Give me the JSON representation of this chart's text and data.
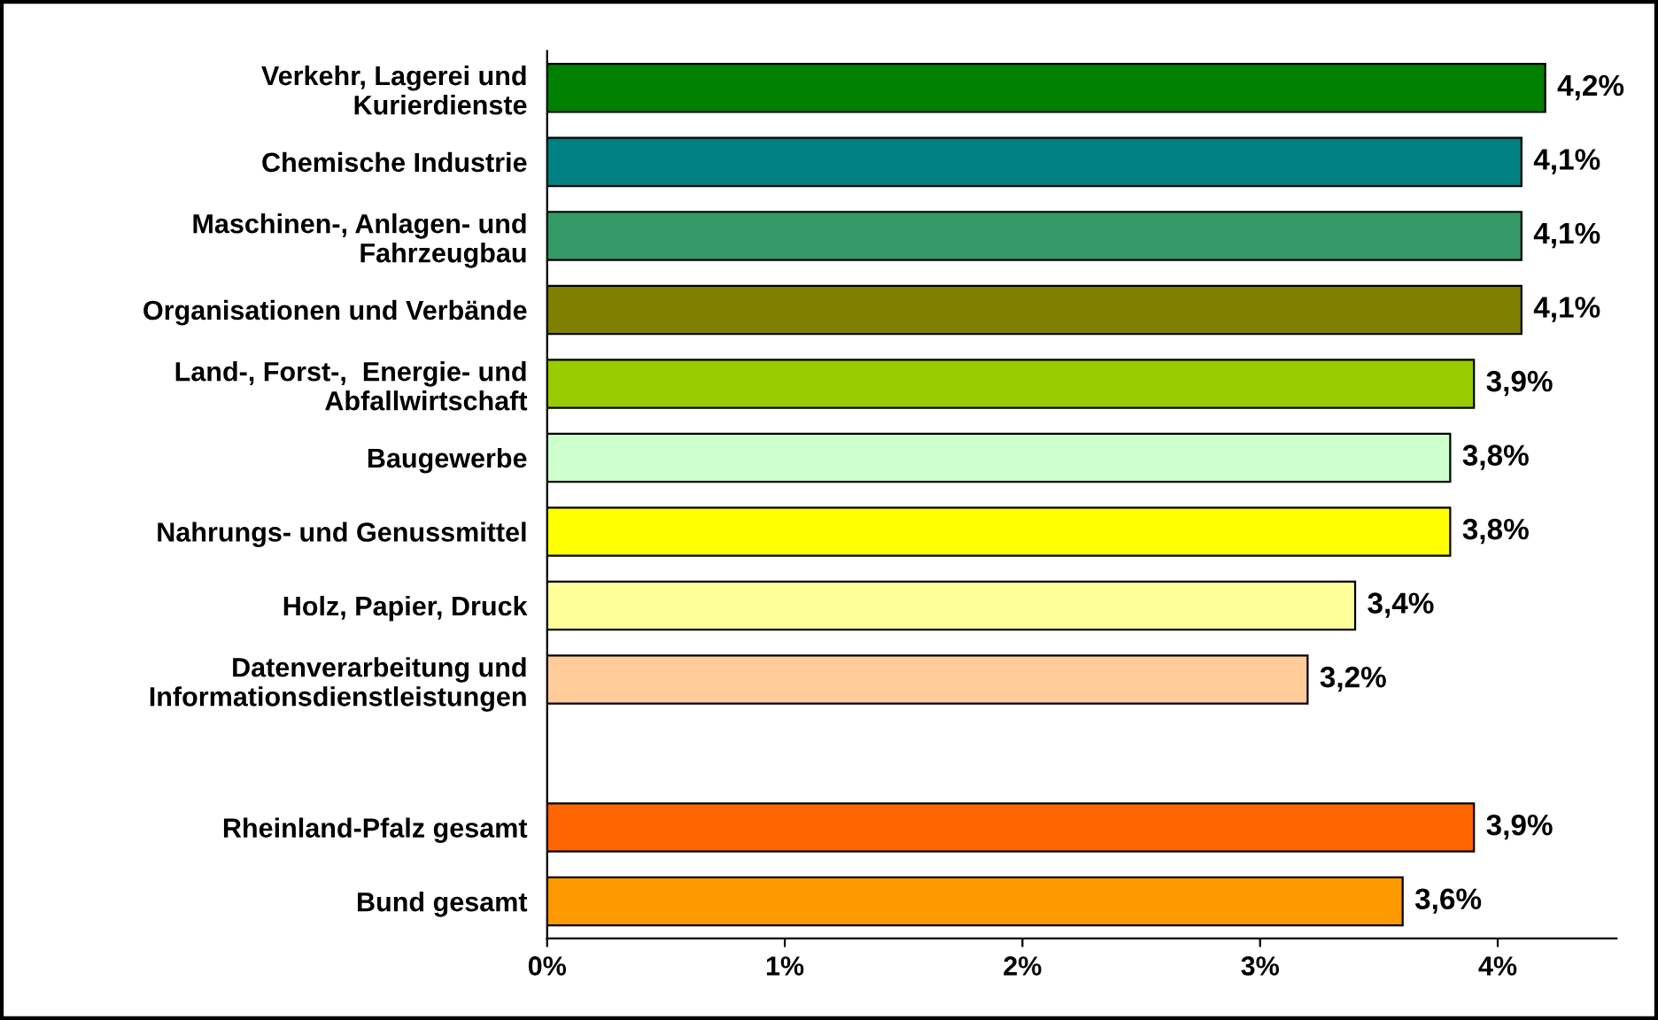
{
  "chart_data": {
    "type": "bar",
    "orientation": "horizontal",
    "categories": [
      "Verkehr, Lagerei und\nKurierdienste",
      "Chemische Industrie",
      "Maschinen-, Anlagen- und\nFahrzeugbau",
      "Organisationen und Verbände",
      "Land-, Forst-,  Energie- und\nAbfallwirtschaft",
      "Baugewerbe",
      "Nahrungs- und Genussmittel",
      "Holz, Papier, Druck",
      "Datenverarbeitung und\nInformationsdienstleistungen",
      null,
      "Rheinland-Pfalz gesamt",
      "Bund gesamt"
    ],
    "values": [
      4.2,
      4.1,
      4.1,
      4.1,
      3.9,
      3.8,
      3.8,
      3.4,
      3.2,
      null,
      3.9,
      3.6
    ],
    "colors": [
      "#008000",
      "#008080",
      "#339966",
      "#808000",
      "#99cc00",
      "#ccffcc",
      "#ffff00",
      "#ffff99",
      "#ffcc99",
      null,
      "#ff6600",
      "#ff9900"
    ],
    "value_labels": [
      "4,2%",
      "4,1%",
      "4,1%",
      "4,1%",
      "3,9%",
      "3,8%",
      "3,8%",
      "3,4%",
      "3,2%",
      null,
      "3,9%",
      "3,6%"
    ],
    "xlim": [
      0,
      4.5
    ],
    "xticks": [
      {
        "value": 0,
        "label": "0%"
      },
      {
        "value": 1,
        "label": "1%"
      },
      {
        "value": 2,
        "label": "2%"
      },
      {
        "value": 3,
        "label": "3%"
      },
      {
        "value": 4,
        "label": "4%"
      }
    ],
    "grid": false,
    "legend": false
  }
}
